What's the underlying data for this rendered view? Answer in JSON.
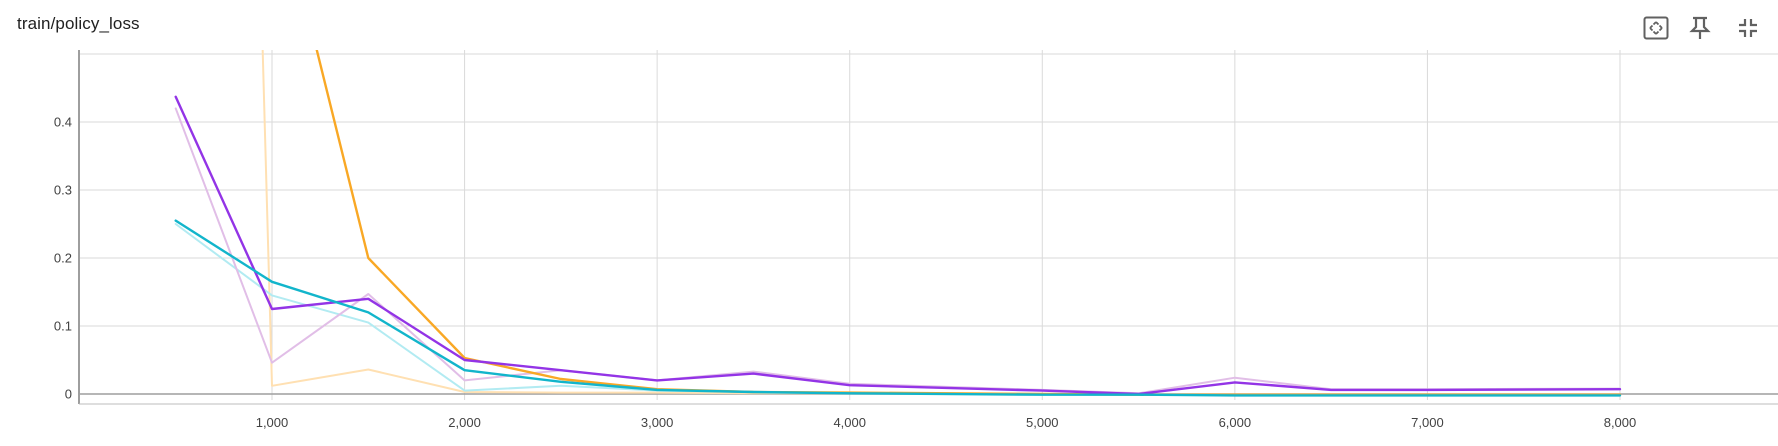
{
  "card": {
    "title": "train/policy_loss"
  },
  "toolbar": {
    "buttons": [
      {
        "name": "fit-domain-button",
        "icon": "fit-to-screen-icon"
      },
      {
        "name": "pin-button",
        "icon": "pin-icon"
      },
      {
        "name": "collapse-button",
        "icon": "collapse-icon"
      }
    ]
  },
  "chart_data": {
    "type": "line",
    "title": "train/policy_loss",
    "xlabel": "",
    "ylabel": "",
    "xlim": [
      0,
      8800
    ],
    "ylim": [
      -0.02,
      0.5
    ],
    "x_ticks": [
      1000,
      2000,
      3000,
      4000,
      5000,
      6000,
      7000,
      8000
    ],
    "x_tick_labels": [
      "1,000",
      "2,000",
      "3,000",
      "4,000",
      "5,000",
      "6,000",
      "7,000",
      "8,000"
    ],
    "y_ticks": [
      0,
      0.1,
      0.2,
      0.3,
      0.4
    ],
    "y_tick_labels": [
      "0",
      "0.1",
      "0.2",
      "0.3",
      "0.4"
    ],
    "grid": true,
    "legend": "none",
    "series": [
      {
        "color": "#ffe0b2",
        "raw": true,
        "x": [
          950,
          1000,
          1500,
          2000,
          2500,
          3000,
          3500,
          4000,
          5000,
          5500,
          6000,
          6500,
          7000,
          8000
        ],
        "y": [
          0.52,
          0.012,
          0.036,
          0.003,
          0.002,
          0.002,
          0.001,
          0.001,
          0.0,
          -0.001,
          -0.001,
          -0.001,
          -0.001,
          -0.001
        ]
      },
      {
        "color": "#b2ebf2",
        "raw": true,
        "x": [
          500,
          1000,
          1500,
          2000,
          2500,
          3000,
          3500,
          4000,
          5000,
          5500,
          6000,
          6500,
          7000,
          8000
        ],
        "y": [
          0.25,
          0.145,
          0.105,
          0.005,
          0.012,
          0.005,
          0.003,
          0.002,
          0.0,
          -0.001,
          -0.001,
          -0.001,
          -0.001,
          -0.001
        ]
      },
      {
        "color": "#e1bee7",
        "raw": true,
        "x": [
          500,
          1000,
          1500,
          2000,
          2500,
          3000,
          3500,
          4000,
          5000,
          5500,
          6000,
          6500,
          7000,
          8000
        ],
        "y": [
          0.42,
          0.046,
          0.147,
          0.02,
          0.035,
          0.02,
          0.033,
          0.015,
          0.006,
          0.001,
          0.024,
          0.007,
          0.007,
          0.008
        ]
      },
      {
        "color": "#f9a825",
        "raw": false,
        "x": [
          1220,
          1500,
          2000,
          2500,
          3000,
          3500,
          4000,
          5000,
          5500,
          6000,
          6500,
          7000,
          8000
        ],
        "y": [
          0.52,
          0.2,
          0.053,
          0.022,
          0.007,
          0.003,
          0.002,
          0.0,
          -0.001,
          -0.001,
          -0.001,
          -0.001,
          -0.001
        ]
      },
      {
        "color": "#9334e6",
        "raw": false,
        "x": [
          500,
          1000,
          1500,
          2000,
          2500,
          3000,
          3500,
          4000,
          5000,
          5500,
          6000,
          6500,
          7000,
          8000
        ],
        "y": [
          0.437,
          0.125,
          0.14,
          0.05,
          0.035,
          0.02,
          0.03,
          0.013,
          0.005,
          0.0,
          0.017,
          0.006,
          0.006,
          0.007
        ]
      },
      {
        "color": "#12b5cb",
        "raw": false,
        "x": [
          500,
          1000,
          1500,
          2000,
          2500,
          3000,
          3500,
          4000,
          5000,
          5500,
          6000,
          6500,
          7000,
          8000
        ],
        "y": [
          0.255,
          0.165,
          0.12,
          0.035,
          0.018,
          0.006,
          0.003,
          0.001,
          -0.001,
          -0.001,
          -0.002,
          -0.002,
          -0.002,
          -0.002
        ]
      }
    ]
  }
}
